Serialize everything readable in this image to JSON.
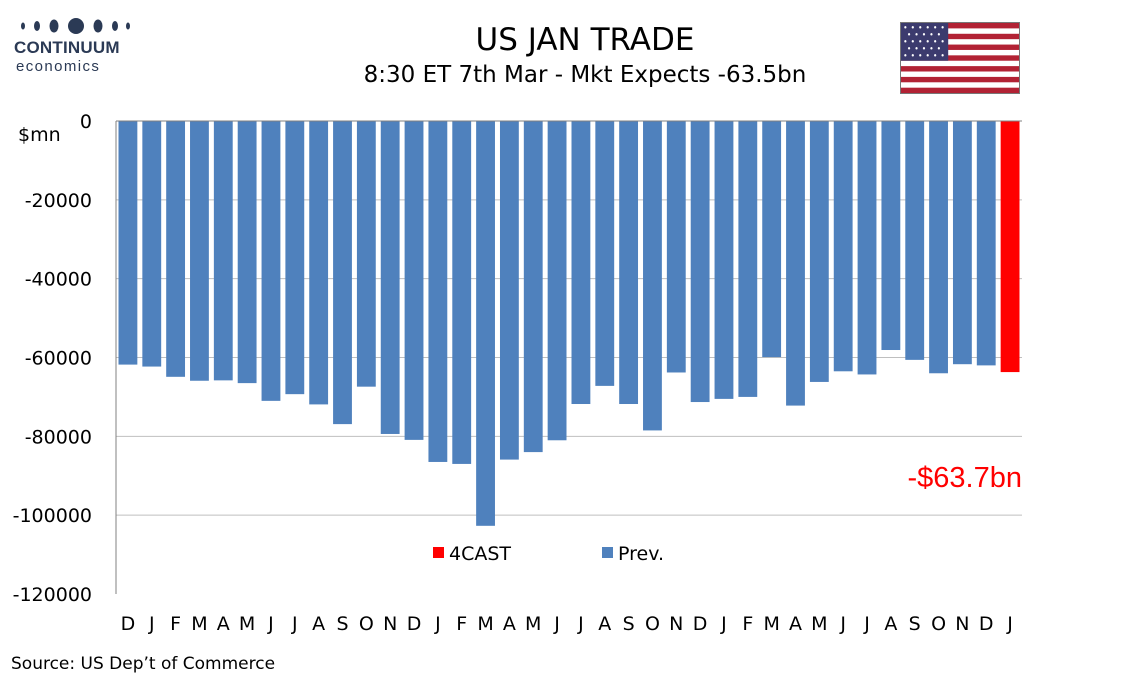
{
  "brand": {
    "name": "CONTINUUM",
    "tagline": "economics"
  },
  "title": "US JAN TRADE",
  "subtitle": "8:30 ET 7th Mar - Mkt Expects -63.5bn",
  "callout": "-$63.7bn",
  "source": "Source: US Dep’t of Commerce",
  "flag": {
    "name": "us-flag-icon"
  },
  "colors": {
    "prev": "#4f81bd",
    "forecast": "#ff0000",
    "callout": "#ff0000",
    "grid": "#bfbfbf",
    "brand": "#2b3a55"
  },
  "chart_data": {
    "type": "bar",
    "ylabel": "$mn",
    "ylim": [
      -120000,
      0
    ],
    "yticks": [
      0,
      -20000,
      -40000,
      -60000,
      -80000,
      -100000,
      -120000
    ],
    "grid": true,
    "legend": {
      "position": "bottom-center",
      "entries": [
        "4CAST",
        "Prev."
      ]
    },
    "categories": [
      "D",
      "J",
      "F",
      "M",
      "A",
      "M",
      "J",
      "J",
      "A",
      "S",
      "O",
      "N",
      "D",
      "J",
      "F",
      "M",
      "A",
      "M",
      "J",
      "J",
      "A",
      "S",
      "O",
      "N",
      "D",
      "J",
      "F",
      "M",
      "A",
      "M",
      "J",
      "J",
      "A",
      "S",
      "O",
      "N",
      "D",
      "J"
    ],
    "series": [
      {
        "name": "Prev.",
        "values": [
          -61800,
          -62300,
          -64900,
          -65900,
          -65800,
          -66500,
          -71000,
          -69300,
          -71900,
          -76900,
          -67400,
          -79400,
          -80900,
          -86500,
          -87000,
          -102700,
          -85900,
          -84000,
          -81000,
          -71800,
          -67200,
          -71800,
          -78500,
          -63800,
          -71300,
          -70500,
          -70000,
          -59900,
          -72200,
          -66200,
          -63500,
          -64300,
          -58100,
          -60600,
          -64000,
          -61700,
          -62000,
          null
        ]
      },
      {
        "name": "4CAST",
        "values": [
          null,
          null,
          null,
          null,
          null,
          null,
          null,
          null,
          null,
          null,
          null,
          null,
          null,
          null,
          null,
          null,
          null,
          null,
          null,
          null,
          null,
          null,
          null,
          null,
          null,
          null,
          null,
          null,
          null,
          null,
          null,
          null,
          null,
          null,
          null,
          null,
          null,
          -63700
        ]
      }
    ]
  }
}
